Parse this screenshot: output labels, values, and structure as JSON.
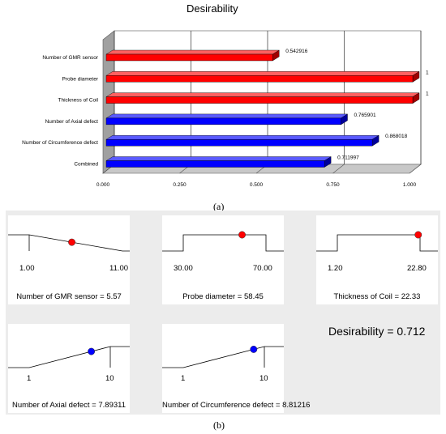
{
  "top_chart": {
    "title": "Desirability",
    "caption": "(a)",
    "chart_data": {
      "type": "bar",
      "orientation": "horizontal",
      "title": "Desirability",
      "categories": [
        "Number of GMR sensor",
        "Probe diameter",
        "Thickness of Coil",
        "Number of Axial defect",
        "Number of Circumference defect",
        "Combined"
      ],
      "values": [
        0.542916,
        1,
        1,
        0.765901,
        0.868018,
        0.711997
      ],
      "value_labels": [
        "0.542916",
        "1",
        "1",
        "0.765901",
        "0.868018",
        "0.711997"
      ],
      "bar_colors": [
        "#ff0000",
        "#ff0000",
        "#ff0000",
        "#0000ff",
        "#0000ff",
        "#0000ff"
      ],
      "xlim": [
        0,
        1
      ],
      "xticks": [
        "0.000",
        "0.250",
        "0.500",
        "0.750",
        "1.000"
      ],
      "grid": true
    }
  },
  "bottom": {
    "caption": "(b)",
    "desirability_text": "Desirability = 0.712",
    "ramps": [
      {
        "label": "Number of GMR sensor = 5.57",
        "low": "1.00",
        "high": "11.00",
        "shape": "descending",
        "fraction": 0.457,
        "dot_color": "#ff0000"
      },
      {
        "label": "Probe diameter = 58.45",
        "low": "30.00",
        "high": "70.00",
        "shape": "flat",
        "fraction": 0.711,
        "dot_color": "#ff0000"
      },
      {
        "label": "Thickness of Coil = 22.33",
        "low": "1.20",
        "high": "22.80",
        "shape": "flat",
        "fraction": 0.978,
        "dot_color": "#ff0000"
      },
      {
        "label": "Number of Axial defect = 7.89311",
        "low": "1",
        "high": "10",
        "shape": "ascending",
        "fraction": 0.766,
        "dot_color": "#0000ff"
      },
      {
        "label": "Number of Circumference defect = 8.81216",
        "low": "1",
        "high": "10",
        "shape": "ascending",
        "fraction": 0.868,
        "dot_color": "#0000ff"
      }
    ]
  }
}
